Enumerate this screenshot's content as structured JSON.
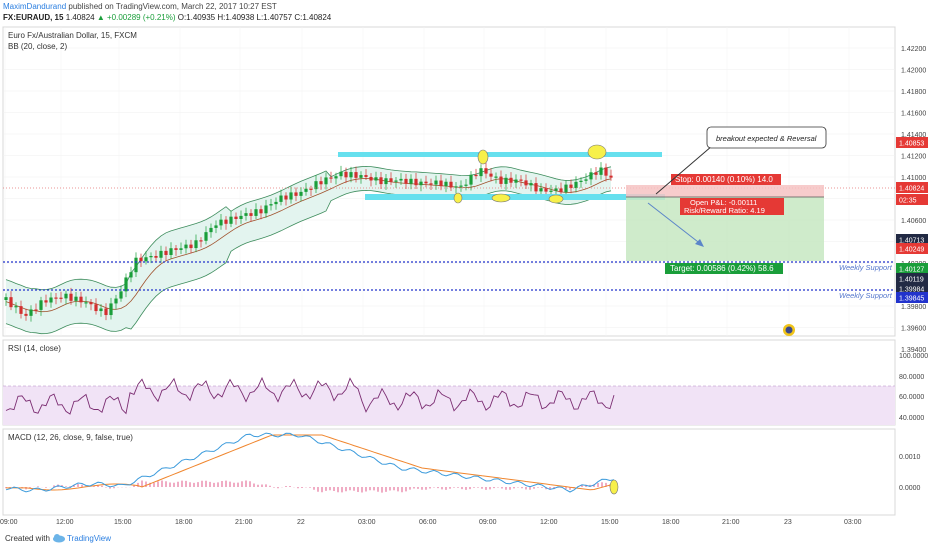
{
  "header": {
    "author": "MaximDandurand",
    "published_text": "published on TradingView.com, March 22, 2017 10:27 EST",
    "symbol": "FX:EURAUD, 15",
    "last": "1.40824",
    "change_arrow": "▲",
    "change": "+0.00289 (+0.21%)",
    "open": "O:1.40935",
    "high": "H:1.40938",
    "low": "L:1.40757",
    "close": "C:1.40824"
  },
  "main_pane": {
    "title": "Euro Fx/Australian Dollar, 15, FXCM",
    "indicator": "BB (20, close, 2)",
    "y_ticks": [
      "1.42200",
      "1.42000",
      "1.41800",
      "1.41600",
      "1.41400",
      "1.41200",
      "1.41000",
      "1.40800",
      "1.40600",
      "1.40400",
      "1.40200",
      "1.39800",
      "1.39600",
      "1.39400"
    ],
    "badges": [
      {
        "label": "1.40853",
        "color": "#e53935"
      },
      {
        "label": "1.40824",
        "color": "#e53935"
      },
      {
        "label": "02:35",
        "color": "#e53935"
      },
      {
        "label": "1.40713",
        "color": "#222a44"
      },
      {
        "label": "1.40249",
        "color": "#e53935"
      },
      {
        "label": "1.40127",
        "color": "#1a9e3a"
      },
      {
        "label": "1.40119",
        "color": "#222a44"
      },
      {
        "label": "1.39984",
        "color": "#222a44"
      },
      {
        "label": "1.39845",
        "color": "#2233cc"
      }
    ],
    "callout": "breakout expected & Reversal",
    "stop_label": "Stop: 0.00140 (0.10%) 14.0",
    "pnl_label": "Open P&L: -0.00111",
    "rr_label": "Risk/Reward Ratio: 4.19",
    "target_label": "Target: 0.00586 (0.42%) 58.6",
    "weekly_support_1": "Weekly Support",
    "weekly_support_2": "Weekly Support"
  },
  "rsi_pane": {
    "title": "RSI (14, close)",
    "y_ticks": [
      "100.0000",
      "80.0000",
      "60.0000",
      "40.0000"
    ]
  },
  "macd_pane": {
    "title": "MACD (12, 26, close, 9, false, true)",
    "y_ticks": [
      "0.0010",
      "0.0000"
    ]
  },
  "x_axis": {
    "ticks": [
      "09:00",
      "12:00",
      "15:00",
      "18:00",
      "21:00",
      "22",
      "03:00",
      "06:00",
      "09:00",
      "12:00",
      "15:00",
      "18:00",
      "21:00",
      "23",
      "03:00"
    ]
  },
  "footer": {
    "created_with": "Created with",
    "brand": "TradingView"
  },
  "colors": {
    "bull": "#1a9e3a",
    "bear": "#d32f2f",
    "bb_line": "#3d8c5c",
    "bb_fill": "#e3f4ef",
    "range_box": "#66e0ee",
    "support": "#2233cc",
    "rsi_line": "#7b2d72",
    "rsi_band": "#f1e3f6",
    "macd_line": "#3c9bdc",
    "signal_line": "#f0862e",
    "hist": "#e05a8a"
  }
}
